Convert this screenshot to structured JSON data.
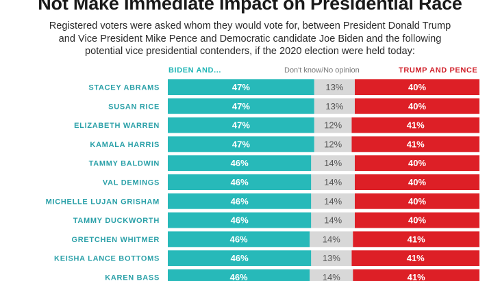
{
  "title": "Not Make Immediate Impact on Presidential Race",
  "subtitle": "Registered voters were asked whom they would vote for, between President Donald Trump and Vice President Mike Pence and Democratic candidate Joe Biden and the following potential vice presidential contenders, if the 2020 election were held today:",
  "colors": {
    "biden": "#27b9b9",
    "dont_know": "#d8d8d8",
    "trump": "#dd1f26"
  },
  "chart_data": {
    "type": "bar",
    "stacked": true,
    "orientation": "horizontal",
    "categories": [
      "STACEY ABRAMS",
      "SUSAN RICE",
      "ELIZABETH WARREN",
      "KAMALA HARRIS",
      "TAMMY BALDWIN",
      "VAL DEMINGS",
      "MICHELLE LUJAN GRISHAM",
      "TAMMY DUCKWORTH",
      "GRETCHEN WHITMER",
      "KEISHA LANCE BOTTOMS",
      "KAREN BASS"
    ],
    "series": [
      {
        "name": "BIDEN AND...",
        "values": [
          47,
          47,
          47,
          47,
          46,
          46,
          46,
          46,
          46,
          46,
          46
        ]
      },
      {
        "name": "Don't know/No opinion",
        "values": [
          13,
          13,
          12,
          12,
          14,
          14,
          14,
          14,
          14,
          13,
          14
        ]
      },
      {
        "name": "TRUMP AND PENCE",
        "values": [
          40,
          40,
          41,
          41,
          40,
          40,
          40,
          40,
          41,
          41,
          41
        ]
      }
    ],
    "value_suffix": "%"
  }
}
